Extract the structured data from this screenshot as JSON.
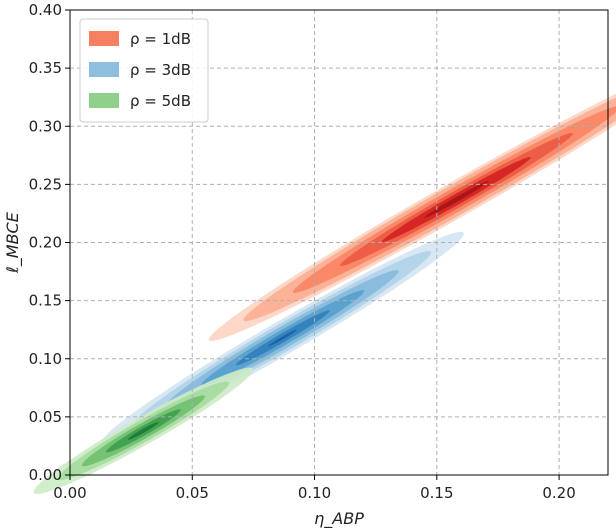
{
  "chart_data": {
    "type": "contour",
    "xlabel": "η_ABP",
    "ylabel": "ℓ_MBCE",
    "xlim": [
      0.0,
      0.22
    ],
    "ylim": [
      0.0,
      0.4
    ],
    "xticks": [
      0.0,
      0.05,
      0.1,
      0.15,
      0.2
    ],
    "yticks": [
      0.0,
      0.05,
      0.1,
      0.15,
      0.2,
      0.25,
      0.3,
      0.35,
      0.4
    ],
    "xtick_labels": [
      "0.00",
      "0.05",
      "0.10",
      "0.15",
      "0.20"
    ],
    "ytick_labels": [
      "0.00",
      "0.05",
      "0.10",
      "0.15",
      "0.20",
      "0.25",
      "0.30",
      "0.35",
      "0.40"
    ],
    "grid": true,
    "legend_position": "top-left",
    "series": [
      {
        "name": "ρ = 1dB",
        "color": "#f4805f",
        "palette": [
          "#fdd5c4",
          "#fcaf93",
          "#fb8464",
          "#ec5a44",
          "#d52322",
          "#a51517"
        ],
        "center": [
          0.158,
          0.237
        ],
        "semi_axes": [
          0.158,
          0.0112
        ],
        "angle_deg": 50.3,
        "levels": [
          1.0,
          0.86,
          0.66,
          0.47,
          0.3,
          0.13
        ]
      },
      {
        "name": "ρ = 3dB",
        "color": "#8ebfde",
        "palette": [
          "#d4e4f3",
          "#b0d1e8",
          "#84b9dc",
          "#569fcd",
          "#3080bd",
          "#1a5da1"
        ],
        "center": [
          0.087,
          0.118
        ],
        "semi_axes": [
          0.117,
          0.0105
        ],
        "angle_deg": 51.0,
        "levels": [
          1.0,
          0.82,
          0.64,
          0.45,
          0.26,
          0.08
        ]
      },
      {
        "name": "ρ = 5dB",
        "color": "#8fd18a",
        "palette": [
          "#cdebc6",
          "#a4da9c",
          "#6fbf70",
          "#3e9f4f",
          "#1b7a36"
        ],
        "center": [
          0.03,
          0.038
        ],
        "semi_axes": [
          0.07,
          0.0087
        ],
        "angle_deg": 50.6,
        "levels": [
          1.0,
          0.78,
          0.56,
          0.34,
          0.14
        ]
      }
    ]
  }
}
